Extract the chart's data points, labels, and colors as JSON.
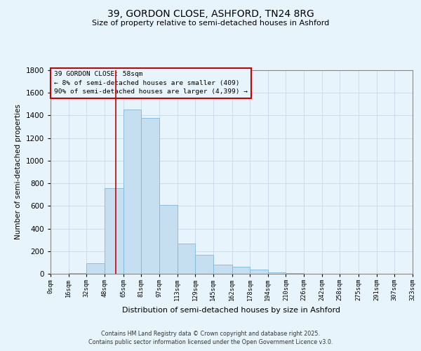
{
  "title1": "39, GORDON CLOSE, ASHFORD, TN24 8RG",
  "title2": "Size of property relative to semi-detached houses in Ashford",
  "xlabel": "Distribution of semi-detached houses by size in Ashford",
  "ylabel": "Number of semi-detached properties",
  "annotation_title": "39 GORDON CLOSE: 58sqm",
  "annotation_line1": "← 8% of semi-detached houses are smaller (409)",
  "annotation_line2": "90% of semi-detached houses are larger (4,399) →",
  "footer1": "Contains HM Land Registry data © Crown copyright and database right 2025.",
  "footer2": "Contains public sector information licensed under the Open Government Licence v3.0.",
  "bar_left_edges": [
    0,
    16,
    32,
    48,
    65,
    81,
    97,
    113,
    129,
    145,
    162,
    178,
    194,
    210,
    226,
    242,
    258,
    275,
    291,
    307
  ],
  "bar_widths": [
    16,
    16,
    16,
    17,
    16,
    16,
    16,
    16,
    16,
    17,
    16,
    16,
    16,
    16,
    16,
    16,
    17,
    16,
    16,
    16
  ],
  "bar_heights": [
    0,
    5,
    95,
    760,
    1450,
    1380,
    610,
    270,
    165,
    80,
    60,
    35,
    10,
    5,
    2,
    1,
    0,
    0,
    0,
    0
  ],
  "tick_labels": [
    "0sqm",
    "16sqm",
    "32sqm",
    "48sqm",
    "65sqm",
    "81sqm",
    "97sqm",
    "113sqm",
    "129sqm",
    "145sqm",
    "162sqm",
    "178sqm",
    "194sqm",
    "210sqm",
    "226sqm",
    "242sqm",
    "258sqm",
    "275sqm",
    "291sqm",
    "307sqm",
    "323sqm"
  ],
  "tick_positions": [
    0,
    16,
    32,
    48,
    65,
    81,
    97,
    113,
    129,
    145,
    162,
    178,
    194,
    210,
    226,
    242,
    258,
    275,
    291,
    307,
    323
  ],
  "xlim": [
    0,
    323
  ],
  "ylim": [
    0,
    1800
  ],
  "yticks": [
    0,
    200,
    400,
    600,
    800,
    1000,
    1200,
    1400,
    1600,
    1800
  ],
  "bar_color": "#c6dff0",
  "bar_edge_color": "#7fb8d8",
  "highlight_x": 58,
  "highlight_color": "#cc0000",
  "annotation_box_color": "#cc0000",
  "grid_color": "#c8d8e8",
  "background_color": "#e8f4fc"
}
